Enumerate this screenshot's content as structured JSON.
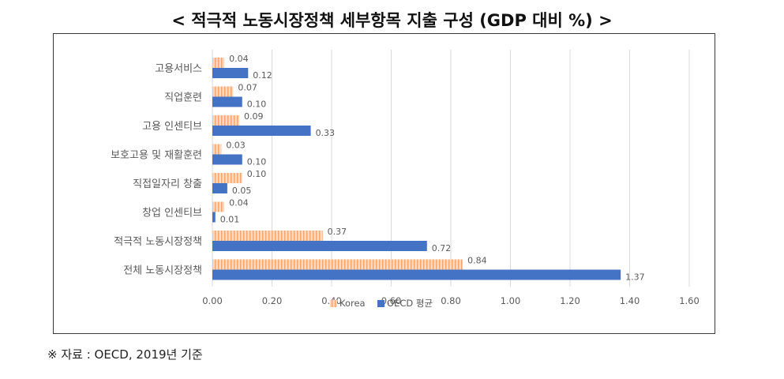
{
  "title": "< 적극적 노동시장정책 세부항목 지출 구성 (GDP 대비 %) >",
  "source": "※ 자료 : OECD, 2019년 기준",
  "colors": {
    "korea_fill": "#fbd9bf",
    "korea_stripe": "#f4a46e",
    "oecd": "#4472c4",
    "grid": "#d9d9d9",
    "text": "#595959"
  },
  "chart_data": {
    "type": "bar",
    "orientation": "horizontal",
    "categories": [
      "고용서비스",
      "직업훈련",
      "고용 인센티브",
      "보호고용 및 재활훈련",
      "직접일자리 창출",
      "창업 인센티브",
      "적극적 노동시장정책",
      "전체 노동시장정책"
    ],
    "series": [
      {
        "name": "Korea",
        "values": [
          0.04,
          0.07,
          0.09,
          0.03,
          0.1,
          0.04,
          0.37,
          0.84
        ],
        "value_labels": [
          "0.04",
          "0.07",
          "0.09",
          "0.03",
          "0.10",
          "0.04",
          "0.37",
          "0.84"
        ]
      },
      {
        "name": "OECD 평균",
        "values": [
          0.12,
          0.1,
          0.33,
          0.1,
          0.05,
          0.01,
          0.72,
          1.37
        ],
        "value_labels": [
          "0.12",
          "0.10",
          "0.33",
          "0.10",
          "0.05",
          "0.01",
          "0.72",
          "1.37"
        ]
      }
    ],
    "xlim": [
      0,
      1.6
    ],
    "xticks": [
      0,
      0.2,
      0.4,
      0.6,
      0.8,
      1.0,
      1.2,
      1.4,
      1.6
    ],
    "xtick_labels": [
      "0.00",
      "0.20",
      "0.40",
      "0.60",
      "0.80",
      "1.00",
      "1.20",
      "1.40",
      "1.60"
    ],
    "grid": "vertical",
    "legend_position": "bottom"
  }
}
